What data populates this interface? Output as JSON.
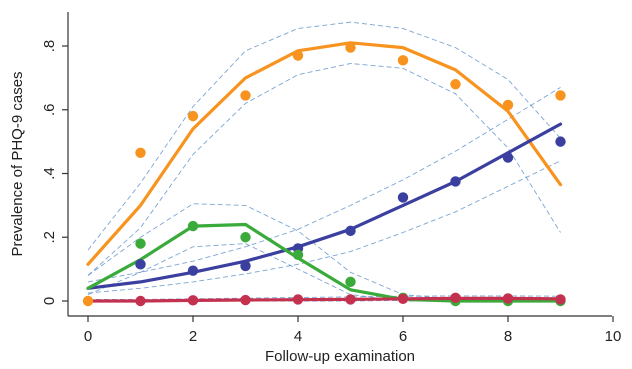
{
  "chart_data": {
    "type": "line",
    "title": "",
    "xlabel": "Follow-up examination",
    "ylabel": "Prevalence of PHQ-9 cases",
    "xlim": [
      0,
      10
    ],
    "ylim": [
      0,
      0.9
    ],
    "x_ticks": [
      0,
      2,
      4,
      6,
      8,
      10
    ],
    "x_tick_labels": [
      "0",
      "2",
      "4",
      "6",
      "8",
      "10"
    ],
    "y_ticks": [
      0,
      0.2,
      0.4,
      0.6,
      0.8
    ],
    "y_tick_labels": [
      "0",
      ".2",
      ".4",
      ".6",
      ".8"
    ],
    "grid": false,
    "legend": "none",
    "series": [
      {
        "color": "#f7931e",
        "observed": {
          "x": [
            0,
            1,
            2,
            3,
            4,
            5,
            6,
            7,
            8,
            9
          ],
          "y": [
            0.0,
            0.465,
            0.58,
            0.645,
            0.77,
            0.795,
            0.755,
            0.68,
            0.615,
            0.645
          ]
        },
        "fitted": {
          "x": [
            0,
            1,
            2,
            3,
            4,
            5,
            6,
            7,
            8,
            9
          ],
          "y": [
            0.115,
            0.3,
            0.54,
            0.7,
            0.785,
            0.81,
            0.795,
            0.725,
            0.595,
            0.365
          ]
        },
        "ci_lower": {
          "x": [
            0,
            1,
            2,
            3,
            4,
            5,
            6,
            7,
            8,
            9
          ],
          "y": [
            0.08,
            0.23,
            0.46,
            0.62,
            0.71,
            0.745,
            0.73,
            0.65,
            0.48,
            0.215
          ]
        },
        "ci_upper": {
          "x": [
            0,
            1,
            2,
            3,
            4,
            5,
            6,
            7,
            8,
            9
          ],
          "y": [
            0.16,
            0.37,
            0.61,
            0.785,
            0.855,
            0.875,
            0.855,
            0.795,
            0.695,
            0.51
          ]
        }
      },
      {
        "color": "#3a3fa0",
        "observed": {
          "x": [
            1,
            2,
            3,
            4,
            5,
            6,
            7,
            8,
            9
          ],
          "y": [
            0.115,
            0.095,
            0.11,
            0.165,
            0.22,
            0.325,
            0.375,
            0.45,
            0.5
          ]
        },
        "fitted": {
          "x": [
            0,
            1,
            2,
            3,
            4,
            5,
            6,
            7,
            8,
            9
          ],
          "y": [
            0.04,
            0.06,
            0.09,
            0.125,
            0.17,
            0.225,
            0.3,
            0.375,
            0.465,
            0.555
          ]
        },
        "ci_lower": {
          "x": [
            0,
            1,
            2,
            3,
            4,
            5,
            6,
            7,
            8,
            9
          ],
          "y": [
            0.025,
            0.04,
            0.06,
            0.085,
            0.115,
            0.155,
            0.215,
            0.28,
            0.36,
            0.44
          ]
        },
        "ci_upper": {
          "x": [
            0,
            1,
            2,
            3,
            4,
            5,
            6,
            7,
            8,
            9
          ],
          "y": [
            0.06,
            0.09,
            0.125,
            0.17,
            0.225,
            0.3,
            0.38,
            0.47,
            0.57,
            0.67
          ]
        }
      },
      {
        "color": "#3aaa3a",
        "observed": {
          "x": [
            1,
            2,
            3,
            4,
            5,
            6,
            7,
            8,
            9
          ],
          "y": [
            0.18,
            0.235,
            0.2,
            0.145,
            0.06,
            0.01,
            0.0,
            0.0,
            0.0
          ]
        },
        "fitted": {
          "x": [
            0,
            1,
            2,
            3,
            4,
            5,
            6,
            7,
            8,
            9
          ],
          "y": [
            0.04,
            0.13,
            0.235,
            0.24,
            0.135,
            0.035,
            0.005,
            0.0,
            0.0,
            0.0
          ]
        },
        "ci_lower": {
          "x": [
            0,
            1,
            2,
            3,
            4,
            5,
            6,
            7,
            8,
            9
          ],
          "y": [
            0.02,
            0.09,
            0.17,
            0.18,
            0.1,
            0.02,
            0.0,
            0.0,
            0.0,
            0.0
          ]
        },
        "ci_upper": {
          "x": [
            0,
            1,
            2,
            3,
            4,
            5,
            6,
            7,
            8,
            9
          ],
          "y": [
            0.08,
            0.2,
            0.305,
            0.3,
            0.22,
            0.09,
            0.02,
            0.005,
            0.0,
            0.0
          ]
        }
      },
      {
        "color": "#c4314f",
        "observed": {
          "x": [
            1,
            2,
            3,
            4,
            5,
            6,
            7,
            8,
            9
          ],
          "y": [
            0.0,
            0.002,
            0.003,
            0.005,
            0.005,
            0.007,
            0.01,
            0.008,
            0.005
          ]
        },
        "fitted": {
          "x": [
            0,
            1,
            2,
            3,
            4,
            5,
            6,
            7,
            8,
            9
          ],
          "y": [
            0.0,
            0.0,
            0.002,
            0.003,
            0.004,
            0.005,
            0.007,
            0.008,
            0.008,
            0.007
          ]
        },
        "ci_lower": {
          "x": [
            0,
            1,
            2,
            3,
            4,
            5,
            6,
            7,
            8,
            9
          ],
          "y": [
            0.0,
            0.0,
            0.0,
            0.0,
            0.0,
            0.0,
            0.002,
            0.003,
            0.003,
            0.002
          ]
        },
        "ci_upper": {
          "x": [
            0,
            1,
            2,
            3,
            4,
            5,
            6,
            7,
            8,
            9
          ],
          "y": [
            0.005,
            0.005,
            0.007,
            0.009,
            0.011,
            0.013,
            0.015,
            0.016,
            0.016,
            0.015
          ]
        }
      }
    ]
  }
}
